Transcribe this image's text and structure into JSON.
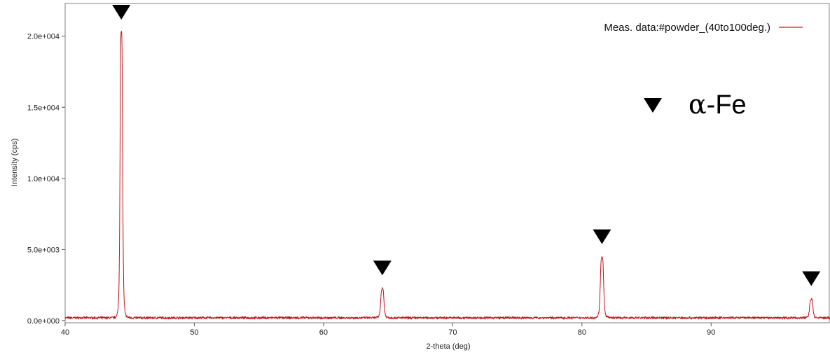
{
  "chart_data": {
    "type": "line",
    "xlabel": "2-theta (deg)",
    "ylabel": "Intensity (cps)",
    "xlim": [
      40,
      99.2
    ],
    "ylim": [
      -150,
      22300
    ],
    "x_ticks": [
      40,
      50,
      60,
      70,
      80,
      90
    ],
    "x_tick_labels": [
      "40",
      "50",
      "60",
      "70",
      "80",
      "90"
    ],
    "y_ticks": [
      0,
      5000,
      10000,
      15000,
      20000
    ],
    "y_tick_labels": [
      "0.0e+000",
      "5.0e+003",
      "1.0e+004",
      "1.5e+004",
      "2.0e+004"
    ],
    "grid": false,
    "legend_position": "top-right",
    "baseline": 200,
    "series": [
      {
        "name": "Meas. data:#powder_(40to100deg.)",
        "color": "#c0141b",
        "peaks": [
          {
            "x": 44.35,
            "y": 20300
          },
          {
            "x": 64.55,
            "y": 2250
          },
          {
            "x": 81.55,
            "y": 4450
          },
          {
            "x": 97.75,
            "y": 1500
          }
        ]
      }
    ],
    "annotations": {
      "marker_symbol": "down-triangle",
      "marker_color": "#000000",
      "marker_x": [
        44.35,
        64.55,
        81.55,
        97.75
      ],
      "legend_label_alpha": "α",
      "legend_label_rest": "-Fe"
    }
  }
}
